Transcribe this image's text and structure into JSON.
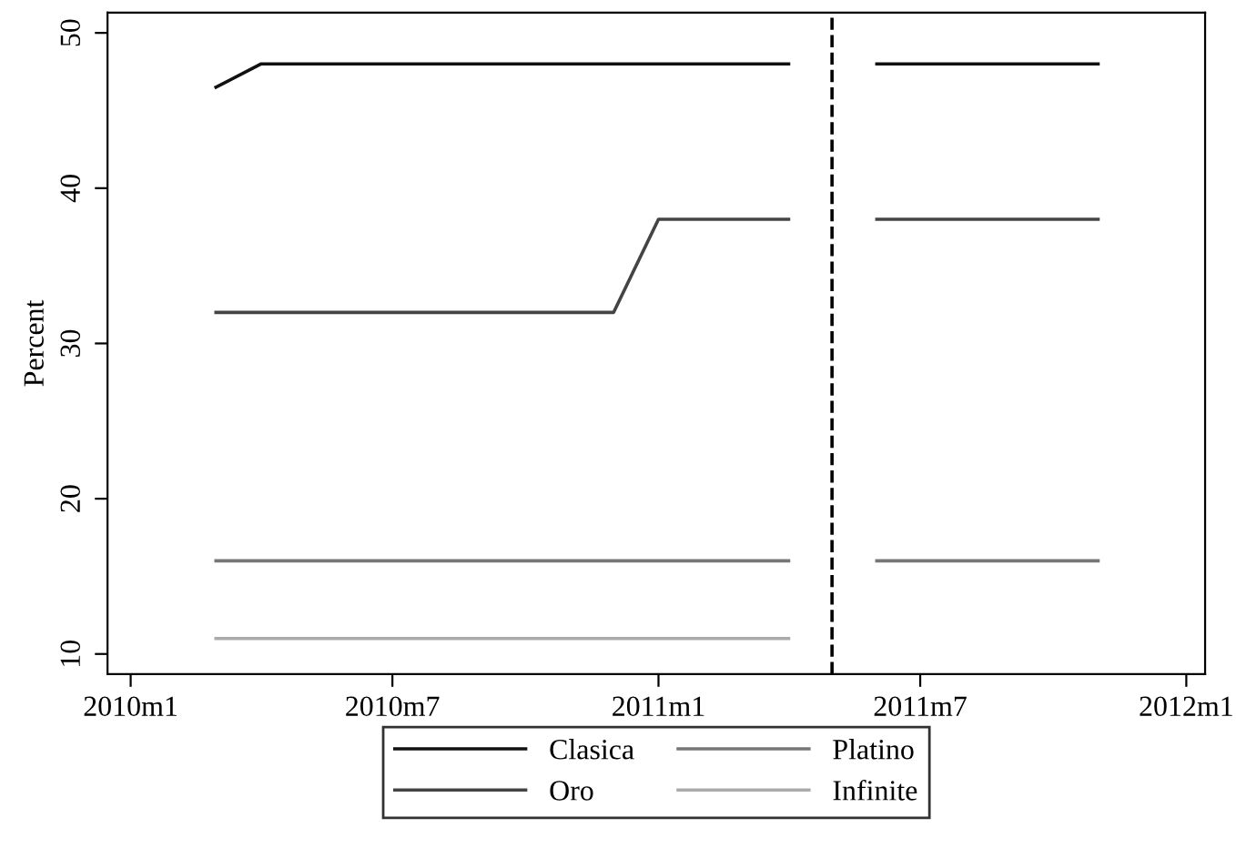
{
  "chart_data": {
    "type": "line",
    "ylabel": "Percent",
    "x": [
      "2010-03",
      "2010-04",
      "2010-05",
      "2010-06",
      "2010-07",
      "2010-08",
      "2010-09",
      "2010-10",
      "2010-11",
      "2010-12",
      "2011-01",
      "2011-02",
      "2011-03",
      "2011-04",
      "2011-05",
      "2011-06",
      "2011-07",
      "2011-08",
      "2011-09",
      "2011-10",
      "2011-11"
    ],
    "series": [
      {
        "name": "Clasica",
        "color": "#111111",
        "values": [
          46.5,
          48,
          48,
          48,
          48,
          48,
          48,
          48,
          48,
          48,
          48,
          48,
          48,
          48,
          null,
          48,
          48,
          48,
          48,
          48,
          48
        ]
      },
      {
        "name": "Oro",
        "color": "#444444",
        "values": [
          32,
          32,
          32,
          32,
          32,
          32,
          32,
          32,
          32,
          32,
          38,
          38,
          38,
          38,
          null,
          38,
          38,
          38,
          38,
          38,
          38
        ]
      },
      {
        "name": "Platino",
        "color": "#777777",
        "values": [
          16,
          16,
          16,
          16,
          16,
          16,
          16,
          16,
          16,
          16,
          16,
          16,
          16,
          16,
          null,
          16,
          16,
          16,
          16,
          16,
          16
        ]
      },
      {
        "name": "Infinite",
        "color": "#aaaaaa",
        "values": [
          11,
          11,
          11,
          11,
          11,
          11,
          11,
          11,
          11,
          11,
          11,
          11,
          11,
          11,
          null,
          null,
          null,
          null,
          null,
          null,
          null
        ]
      }
    ],
    "xlim": [
      "2009-12-16",
      "2012-01-14"
    ],
    "xticks": [
      {
        "value": "2010-01",
        "label": "2010m1"
      },
      {
        "value": "2010-07",
        "label": "2010m7"
      },
      {
        "value": "2011-01",
        "label": "2011m1"
      },
      {
        "value": "2011-07",
        "label": "2011m7"
      },
      {
        "value": "2012-01",
        "label": "2012m1"
      }
    ],
    "ylim": [
      8.7,
      51.3
    ],
    "yticks": [
      10,
      20,
      30,
      40,
      50
    ],
    "ref_lines": [
      {
        "axis": "x",
        "value": "2011-05",
        "color": "#000000",
        "line_style": "dashed"
      }
    ],
    "grid": false,
    "legend": "bottom",
    "marker": "none",
    "line_style": "solid"
  }
}
